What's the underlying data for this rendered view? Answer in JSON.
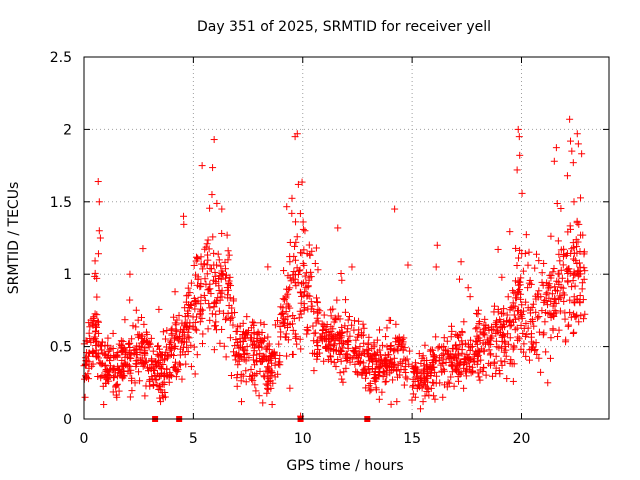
{
  "chart_data": {
    "type": "scatter",
    "title": "Day 351 of 2025, SRMTID for receiver yell",
    "xlabel": "GPS time / hours",
    "ylabel": "SRMTID / TECUs",
    "xlim": [
      0,
      24
    ],
    "ylim": [
      0,
      2.5
    ],
    "xticks": [
      0,
      5,
      10,
      15,
      20
    ],
    "xtick_labels": [
      "0",
      "5",
      "10",
      "15",
      "20"
    ],
    "yticks": [
      0,
      0.5,
      1,
      1.5,
      2,
      2.5
    ],
    "ytick_labels": [
      "0",
      "0.5",
      "1",
      "1.5",
      "2",
      "2.5"
    ],
    "grid": true,
    "marker": "+",
    "color": "#ff0000",
    "zero_markers_x": [
      3.25,
      4.35,
      9.9,
      12.95
    ],
    "envelope": {
      "hours": [
        0,
        0.5,
        1,
        1.5,
        2,
        2.5,
        3,
        3.5,
        4,
        4.5,
        5,
        5.5,
        6,
        6.5,
        7,
        7.5,
        8,
        8.5,
        9,
        9.5,
        10,
        10.5,
        11,
        11.5,
        12,
        12.5,
        13,
        13.5,
        14,
        14.5,
        15,
        15.5,
        16,
        16.5,
        17,
        17.5,
        18,
        18.5,
        19,
        19.5,
        20,
        20.5,
        21,
        21.5,
        22,
        22.5,
        22.9
      ],
      "median": [
        0.42,
        0.6,
        0.35,
        0.35,
        0.38,
        0.48,
        0.42,
        0.3,
        0.45,
        0.6,
        0.75,
        0.9,
        0.95,
        0.9,
        0.45,
        0.5,
        0.45,
        0.35,
        0.6,
        0.85,
        0.95,
        0.7,
        0.55,
        0.5,
        0.55,
        0.45,
        0.4,
        0.35,
        0.4,
        0.45,
        0.3,
        0.3,
        0.32,
        0.38,
        0.4,
        0.45,
        0.5,
        0.5,
        0.55,
        0.6,
        0.8,
        0.7,
        0.75,
        0.85,
        0.95,
        1.0,
        1.05
      ],
      "spread": [
        0.18,
        0.25,
        0.15,
        0.15,
        0.2,
        0.2,
        0.18,
        0.15,
        0.2,
        0.25,
        0.3,
        0.35,
        0.35,
        0.35,
        0.2,
        0.2,
        0.2,
        0.18,
        0.3,
        0.35,
        0.4,
        0.3,
        0.2,
        0.2,
        0.2,
        0.18,
        0.15,
        0.15,
        0.18,
        0.2,
        0.15,
        0.15,
        0.15,
        0.18,
        0.18,
        0.2,
        0.2,
        0.2,
        0.25,
        0.3,
        0.35,
        0.3,
        0.35,
        0.35,
        0.4,
        0.4,
        0.4
      ]
    },
    "notable_peaks": [
      {
        "x": 0.65,
        "y": 1.64
      },
      {
        "x": 0.7,
        "y": 1.5
      },
      {
        "x": 0.7,
        "y": 1.3
      },
      {
        "x": 0.75,
        "y": 1.25
      },
      {
        "x": 2.1,
        "y": 1.0
      },
      {
        "x": 4.55,
        "y": 1.4
      },
      {
        "x": 5.4,
        "y": 1.75
      },
      {
        "x": 5.95,
        "y": 1.93
      },
      {
        "x": 5.85,
        "y": 1.55
      },
      {
        "x": 6.3,
        "y": 1.45
      },
      {
        "x": 9.65,
        "y": 1.95
      },
      {
        "x": 9.75,
        "y": 1.97
      },
      {
        "x": 9.5,
        "y": 1.42
      },
      {
        "x": 9.8,
        "y": 1.62
      },
      {
        "x": 10.1,
        "y": 1.3
      },
      {
        "x": 12.25,
        "y": 1.05
      },
      {
        "x": 14.2,
        "y": 1.45
      },
      {
        "x": 16.15,
        "y": 1.2
      },
      {
        "x": 16.1,
        "y": 1.05
      },
      {
        "x": 19.85,
        "y": 2.0
      },
      {
        "x": 19.9,
        "y": 1.95
      },
      {
        "x": 19.8,
        "y": 1.72
      },
      {
        "x": 21.5,
        "y": 1.78
      },
      {
        "x": 22.2,
        "y": 2.07
      },
      {
        "x": 22.55,
        "y": 1.97
      },
      {
        "x": 22.6,
        "y": 1.9
      },
      {
        "x": 22.3,
        "y": 1.85
      },
      {
        "x": 22.1,
        "y": 1.68
      },
      {
        "x": 22.4,
        "y": 1.5
      },
      {
        "x": 22.7,
        "y": 1.27
      },
      {
        "x": 22.8,
        "y": 1.27
      }
    ],
    "notable_lows": [
      {
        "x": 0.05,
        "y": 0.15
      },
      {
        "x": 0.9,
        "y": 0.1
      },
      {
        "x": 1.5,
        "y": 0.15
      },
      {
        "x": 3.5,
        "y": 0.12
      },
      {
        "x": 7.2,
        "y": 0.12
      },
      {
        "x": 8.6,
        "y": 0.1
      },
      {
        "x": 9.9,
        "y": 0.02
      },
      {
        "x": 14.3,
        "y": 0.12
      },
      {
        "x": 15.5,
        "y": 0.12
      },
      {
        "x": 16.4,
        "y": 0.15
      },
      {
        "x": 21.2,
        "y": 0.25
      }
    ]
  }
}
